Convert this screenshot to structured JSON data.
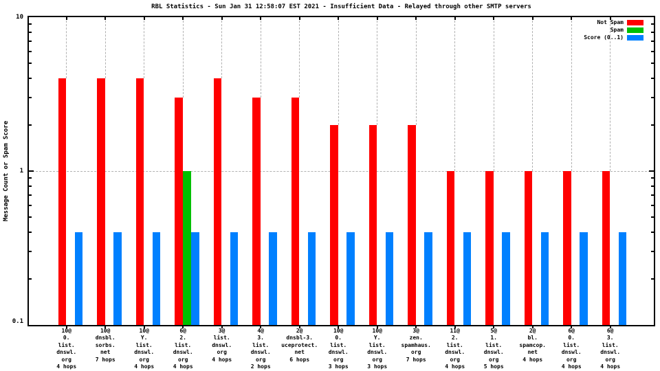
{
  "title": "RBL Statistics - Sun Jan 31 12:58:07 EST 2021 - Insufficient Data - Relayed through other SMTP servers",
  "y_axis": {
    "label": "Message Count or Spam Score",
    "ticks": [
      "10",
      "1",
      "0.1"
    ]
  },
  "legend": {
    "items": [
      {
        "label": "Not Spam",
        "color": "#ff0000"
      },
      {
        "label": "Spam",
        "color": "#00c000"
      },
      {
        "label": "Score (0..1)",
        "color": "#0080ff"
      }
    ]
  },
  "chart_data": {
    "type": "bar",
    "title": "RBL Statistics - Sun Jan 31 12:58:07 EST 2021 - Insufficient Data - Relayed through other SMTP servers",
    "ylabel": "Message Count or Spam Score",
    "y_scale": "log",
    "ylim": [
      0.1,
      10
    ],
    "grid": true,
    "legend_position": "top-right",
    "colors": {
      "not_spam": "#ff0000",
      "spam": "#00c000",
      "score": "#0080ff"
    },
    "series_names": [
      "Not Spam",
      "Spam",
      "Score (0..1)"
    ],
    "y_minor_ticks": [
      0.2,
      0.3,
      0.4,
      0.5,
      0.6,
      0.7,
      0.8,
      0.9,
      2,
      3,
      4,
      5,
      6,
      7,
      8,
      9
    ],
    "groups": [
      {
        "label_lines": [
          "10@",
          "0.",
          "list.",
          "dnswl.",
          "org",
          "4 hops"
        ],
        "not_spam": 4,
        "spam": 0,
        "score": 0.4
      },
      {
        "label_lines": [
          "10@",
          "dnsbl.",
          "sorbs.",
          "net",
          "7 hops"
        ],
        "not_spam": 4,
        "spam": 0,
        "score": 0.4
      },
      {
        "label_lines": [
          "10@",
          "Y.",
          "list.",
          "dnswl.",
          "org",
          "4 hops"
        ],
        "not_spam": 4,
        "spam": 0,
        "score": 0.4
      },
      {
        "label_lines": [
          "6@",
          "2.",
          "list.",
          "dnswl.",
          "org",
          "4 hops"
        ],
        "not_spam": 3,
        "spam": 1,
        "score": 0.4
      },
      {
        "label_lines": [
          "3@",
          "list.",
          "dnswl.",
          "org",
          "4 hops"
        ],
        "not_spam": 4,
        "spam": 0,
        "score": 0.4
      },
      {
        "label_lines": [
          "4@",
          "3.",
          "list.",
          "dnswl.",
          "org",
          "2 hops"
        ],
        "not_spam": 3,
        "spam": 0,
        "score": 0.4
      },
      {
        "label_lines": [
          "2@",
          "dnsbl-3.",
          "uceprotect.",
          "net",
          "6 hops"
        ],
        "not_spam": 3,
        "spam": 0,
        "score": 0.4
      },
      {
        "label_lines": [
          "10@",
          "0.",
          "list.",
          "dnswl.",
          "org",
          "3 hops"
        ],
        "not_spam": 2,
        "spam": 0,
        "score": 0.4
      },
      {
        "label_lines": [
          "10@",
          "Y.",
          "list.",
          "dnswl.",
          "org",
          "3 hops"
        ],
        "not_spam": 2,
        "spam": 0,
        "score": 0.4
      },
      {
        "label_lines": [
          "3@",
          "zen.",
          "spamhaus.",
          "org",
          "7 hops"
        ],
        "not_spam": 2,
        "spam": 0,
        "score": 0.4
      },
      {
        "label_lines": [
          "11@",
          "2.",
          "list.",
          "dnswl.",
          "org",
          "4 hops"
        ],
        "not_spam": 1,
        "spam": 0,
        "score": 0.4
      },
      {
        "label_lines": [
          "5@",
          "1.",
          "list.",
          "dnswl.",
          "org",
          "5 hops"
        ],
        "not_spam": 1,
        "spam": 0,
        "score": 0.4
      },
      {
        "label_lines": [
          "2@",
          "bl.",
          "spamcop.",
          "net",
          "4 hops"
        ],
        "not_spam": 1,
        "spam": 0,
        "score": 0.4
      },
      {
        "label_lines": [
          "6@",
          "0.",
          "list.",
          "dnswl.",
          "org",
          "4 hops"
        ],
        "not_spam": 1,
        "spam": 0,
        "score": 0.4
      },
      {
        "label_lines": [
          "6@",
          "3.",
          "list.",
          "dnswl.",
          "org",
          "4 hops"
        ],
        "not_spam": 1,
        "spam": 0,
        "score": 0.4
      }
    ]
  }
}
